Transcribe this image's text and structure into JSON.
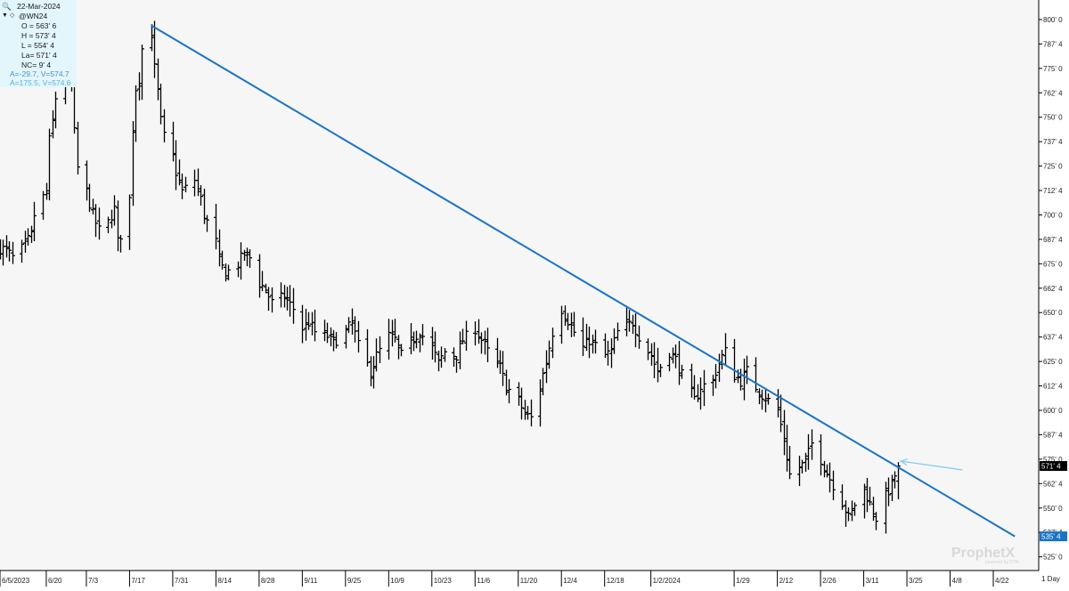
{
  "header": {
    "date": "22-Mar-2024",
    "symbol": "@WN24",
    "open_line": "O = 563' 6",
    "high_line": "H = 573' 4",
    "low_line": "L = 554' 4",
    "last_line": "La= 571' 4",
    "change_line": "NC= 9' 4",
    "cursor_line_1": "A=-29.7, V=574.7",
    "cursor_line_2": "A=175.5, V=574.6"
  },
  "watermark": {
    "brand": "ProphetX",
    "tagline": "powered by DTN"
  },
  "timeframe_label": "1 Day",
  "colors": {
    "trendline": "#1a73c8",
    "arrow": "#87cdee",
    "bars": "#000000",
    "last_price_tag": "#000000",
    "trend_tag": "#1a73c8",
    "info_box": "#e3f6fb"
  },
  "chart_data": {
    "type": "ohlc",
    "instrument": "@WN24",
    "bar_interval": "1 Day",
    "ylim": [
      518,
      810
    ],
    "y_ticks": [
      525,
      537.5,
      550,
      562.5,
      575,
      587.5,
      600,
      612.5,
      625,
      637.5,
      650,
      662.5,
      675,
      687.5,
      700,
      712.5,
      725,
      737.5,
      750,
      762.5,
      775,
      787.5,
      800
    ],
    "y_tick_labels": [
      "525' 0",
      "537' 4",
      "550' 0",
      "562' 4",
      "575' 0",
      "587' 4",
      "600' 0",
      "612' 4",
      "625' 0",
      "637' 4",
      "650' 0",
      "662' 4",
      "675' 0",
      "687' 4",
      "700' 0",
      "712' 4",
      "725' 0",
      "737' 4",
      "750' 0",
      "762' 4",
      "775' 0",
      "787' 4",
      "800' 0"
    ],
    "x_ticks": [
      "6/5/2023",
      "6/20",
      "7/3",
      "7/17",
      "7/31",
      "8/14",
      "8/28",
      "9/11",
      "9/25",
      "10/9",
      "10/23",
      "11/6",
      "11/20",
      "12/4",
      "12/18",
      "1/2/2024",
      "1/29",
      "2/12",
      "2/26",
      "3/11",
      "3/25",
      "4/8",
      "4/22"
    ],
    "x_tick_dates": [
      "2023-06-05",
      "2023-06-20",
      "2023-07-03",
      "2023-07-17",
      "2023-07-31",
      "2023-08-14",
      "2023-08-28",
      "2023-09-11",
      "2023-09-25",
      "2023-10-09",
      "2023-10-23",
      "2023-11-06",
      "2023-11-20",
      "2023-12-04",
      "2023-12-18",
      "2024-01-02",
      "2024-01-29",
      "2024-02-12",
      "2024-02-26",
      "2024-03-11",
      "2024-03-25",
      "2024-04-08",
      "2024-04-22"
    ],
    "close_path": [
      [
        "2023-06-05",
        683
      ],
      [
        "2023-06-07",
        682
      ],
      [
        "2023-06-09",
        678
      ],
      [
        "2023-06-13",
        684
      ],
      [
        "2023-06-15",
        690
      ],
      [
        "2023-06-16",
        700
      ],
      [
        "2023-06-20",
        712
      ],
      [
        "2023-06-21",
        738
      ],
      [
        "2023-06-22",
        748
      ],
      [
        "2023-06-23",
        760
      ],
      [
        "2023-06-26",
        772
      ],
      [
        "2023-06-27",
        780
      ],
      [
        "2023-06-28",
        768
      ],
      [
        "2023-06-29",
        742
      ],
      [
        "2023-06-30",
        724
      ],
      [
        "2023-07-03",
        712
      ],
      [
        "2023-07-05",
        700
      ],
      [
        "2023-07-07",
        692
      ],
      [
        "2023-07-10",
        696
      ],
      [
        "2023-07-11",
        700
      ],
      [
        "2023-07-12",
        703
      ],
      [
        "2023-07-13",
        686
      ],
      [
        "2023-07-14",
        690
      ],
      [
        "2023-07-17",
        708
      ],
      [
        "2023-07-18",
        745
      ],
      [
        "2023-07-19",
        765
      ],
      [
        "2023-07-20",
        770
      ],
      [
        "2023-07-21",
        785
      ],
      [
        "2023-07-24",
        793
      ],
      [
        "2023-07-25",
        775
      ],
      [
        "2023-07-26",
        763
      ],
      [
        "2023-07-27",
        748
      ],
      [
        "2023-07-28",
        740
      ],
      [
        "2023-07-31",
        730
      ],
      [
        "2023-08-01",
        722
      ],
      [
        "2023-08-03",
        712
      ],
      [
        "2023-08-07",
        718
      ],
      [
        "2023-08-09",
        708
      ],
      [
        "2023-08-10",
        700
      ],
      [
        "2023-08-14",
        686
      ],
      [
        "2023-08-15",
        676
      ],
      [
        "2023-08-17",
        670
      ],
      [
        "2023-08-21",
        675
      ],
      [
        "2023-08-23",
        680
      ],
      [
        "2023-08-25",
        678
      ],
      [
        "2023-08-28",
        665
      ],
      [
        "2023-08-30",
        662
      ],
      [
        "2023-09-01",
        655
      ],
      [
        "2023-09-05",
        658
      ],
      [
        "2023-09-08",
        652
      ],
      [
        "2023-09-11",
        642
      ],
      [
        "2023-09-13",
        645
      ],
      [
        "2023-09-15",
        640
      ],
      [
        "2023-09-19",
        638
      ],
      [
        "2023-09-21",
        635
      ],
      [
        "2023-09-25",
        640
      ],
      [
        "2023-09-27",
        645
      ],
      [
        "2023-09-29",
        633
      ],
      [
        "2023-10-03",
        620
      ],
      [
        "2023-10-05",
        628
      ],
      [
        "2023-10-09",
        638
      ],
      [
        "2023-10-11",
        636
      ],
      [
        "2023-10-13",
        628
      ],
      [
        "2023-10-17",
        637
      ],
      [
        "2023-10-19",
        640
      ],
      [
        "2023-10-23",
        632
      ],
      [
        "2023-10-25",
        624
      ],
      [
        "2023-10-27",
        630
      ],
      [
        "2023-10-31",
        628
      ],
      [
        "2023-11-02",
        636
      ],
      [
        "2023-11-06",
        642
      ],
      [
        "2023-11-08",
        636
      ],
      [
        "2023-11-10",
        630
      ],
      [
        "2023-11-14",
        622
      ],
      [
        "2023-11-16",
        612
      ],
      [
        "2023-11-20",
        605
      ],
      [
        "2023-11-22",
        598
      ],
      [
        "2023-11-24",
        596
      ],
      [
        "2023-11-27",
        612
      ],
      [
        "2023-11-29",
        625
      ],
      [
        "2023-12-01",
        640
      ],
      [
        "2023-12-04",
        652
      ],
      [
        "2023-12-06",
        646
      ],
      [
        "2023-12-08",
        640
      ],
      [
        "2023-12-11",
        632
      ],
      [
        "2023-12-13",
        636
      ],
      [
        "2023-12-15",
        633
      ],
      [
        "2023-12-18",
        628
      ],
      [
        "2023-12-20",
        630
      ],
      [
        "2023-12-22",
        640
      ],
      [
        "2023-12-27",
        645
      ],
      [
        "2023-12-29",
        638
      ],
      [
        "2024-01-02",
        628
      ],
      [
        "2024-01-04",
        620
      ],
      [
        "2024-01-08",
        630
      ],
      [
        "2024-01-10",
        626
      ],
      [
        "2024-01-12",
        618
      ],
      [
        "2024-01-16",
        605
      ],
      [
        "2024-01-18",
        612
      ],
      [
        "2024-01-22",
        615
      ],
      [
        "2024-01-24",
        625
      ],
      [
        "2024-01-26",
        630
      ],
      [
        "2024-01-29",
        618
      ],
      [
        "2024-01-31",
        615
      ],
      [
        "2024-02-02",
        620
      ],
      [
        "2024-02-05",
        612
      ],
      [
        "2024-02-07",
        608
      ],
      [
        "2024-02-09",
        605
      ],
      [
        "2024-02-12",
        600
      ],
      [
        "2024-02-14",
        585
      ],
      [
        "2024-02-16",
        567
      ],
      [
        "2024-02-20",
        572
      ],
      [
        "2024-02-22",
        578
      ],
      [
        "2024-02-23",
        583
      ],
      [
        "2024-02-26",
        575
      ],
      [
        "2024-02-28",
        568
      ],
      [
        "2024-03-01",
        562
      ],
      [
        "2024-03-04",
        553
      ],
      [
        "2024-03-06",
        545
      ],
      [
        "2024-03-08",
        552
      ],
      [
        "2024-03-11",
        560
      ],
      [
        "2024-03-13",
        552
      ],
      [
        "2024-03-15",
        545
      ],
      [
        "2024-03-18",
        556
      ],
      [
        "2024-03-20",
        562
      ],
      [
        "2024-03-22",
        571.5
      ]
    ],
    "last_close_date": "2024-03-22",
    "trendline": {
      "start": [
        "2023-07-24",
        797
      ],
      "end": [
        "2024-04-29",
        535.5
      ],
      "label": "535' 4"
    },
    "last_price_label": "571' 4",
    "arrow": {
      "from": [
        "2024-04-12",
        569.5
      ],
      "to": [
        "2024-03-23",
        574
      ]
    },
    "grid": false
  }
}
